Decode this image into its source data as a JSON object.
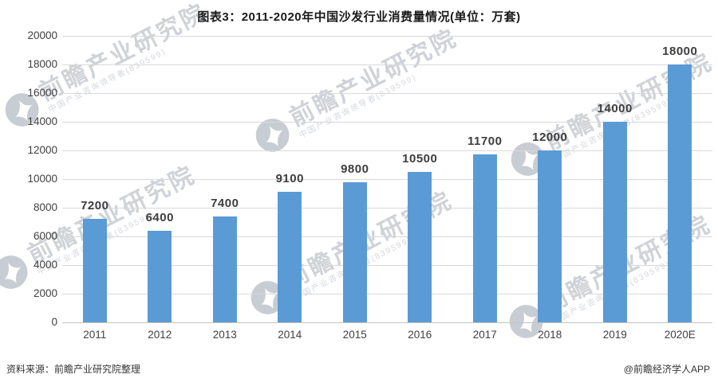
{
  "chart_data": {
    "type": "bar",
    "title": "图表3：2011-2020年中国沙发行业消费量情况(单位：万套)",
    "categories": [
      "2011",
      "2012",
      "2013",
      "2014",
      "2015",
      "2016",
      "2017",
      "2018",
      "2019",
      "2020E"
    ],
    "values": [
      7200,
      6400,
      7400,
      9100,
      9800,
      10500,
      11700,
      12000,
      14000,
      18000
    ],
    "unit": "万套",
    "xlabel": "",
    "ylabel": "",
    "ylim": [
      0,
      20000
    ],
    "ytick_step": 2000,
    "y_ticks": [
      0,
      2000,
      4000,
      6000,
      8000,
      10000,
      12000,
      14000,
      16000,
      18000,
      20000
    ],
    "grid": true,
    "legend_position": "none",
    "bar_color": "#5b9bd5"
  },
  "watermark": {
    "text": "前瞻产业研究院",
    "subtext": "中国产业咨询领导者(839599)"
  },
  "footer": {
    "source": "资料来源：前瞻产业研究院整理",
    "credit": "@前瞻经济学人APP"
  }
}
